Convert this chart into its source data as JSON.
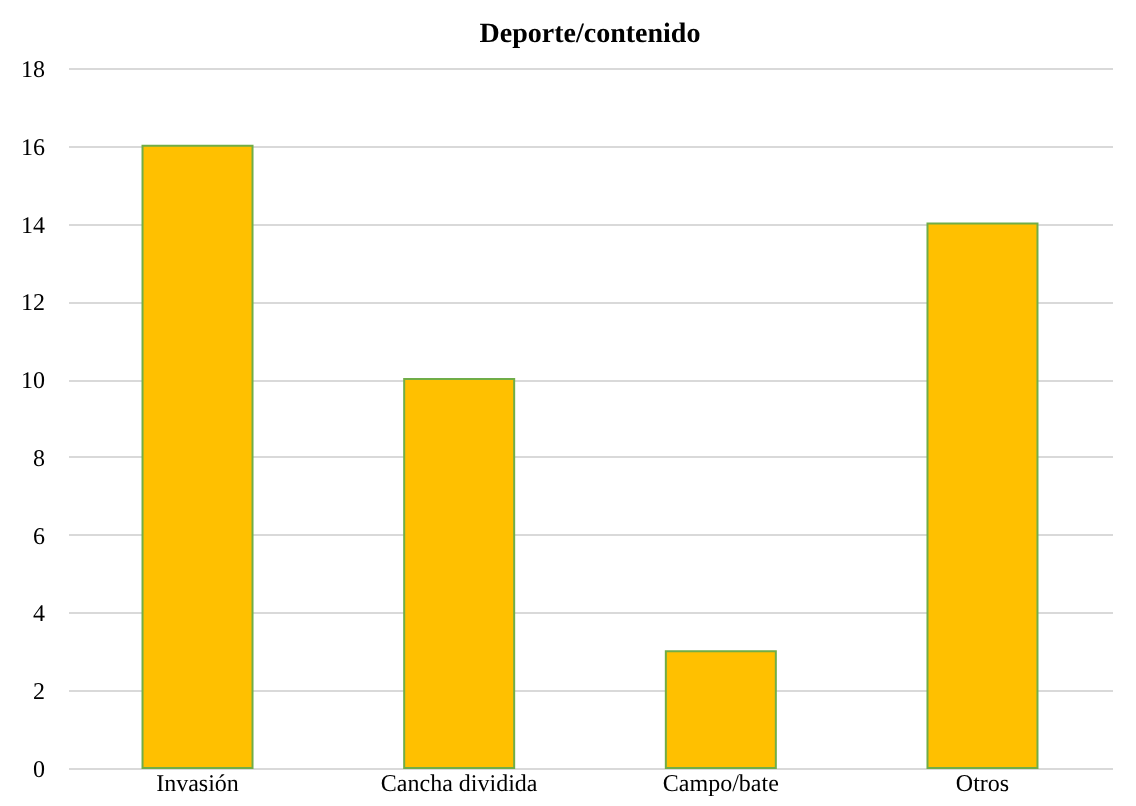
{
  "chart_data": {
    "type": "bar",
    "title": "Deporte/contenido",
    "categories": [
      "Invasión",
      "Cancha dividida",
      "Campo/bate",
      "Otros"
    ],
    "values": [
      16,
      10,
      3,
      14
    ],
    "color": "#ffc000",
    "ylim": [
      0,
      18
    ],
    "yticks": [
      0,
      2,
      4,
      6,
      8,
      10,
      12,
      14,
      16,
      18
    ],
    "grid": "y"
  }
}
